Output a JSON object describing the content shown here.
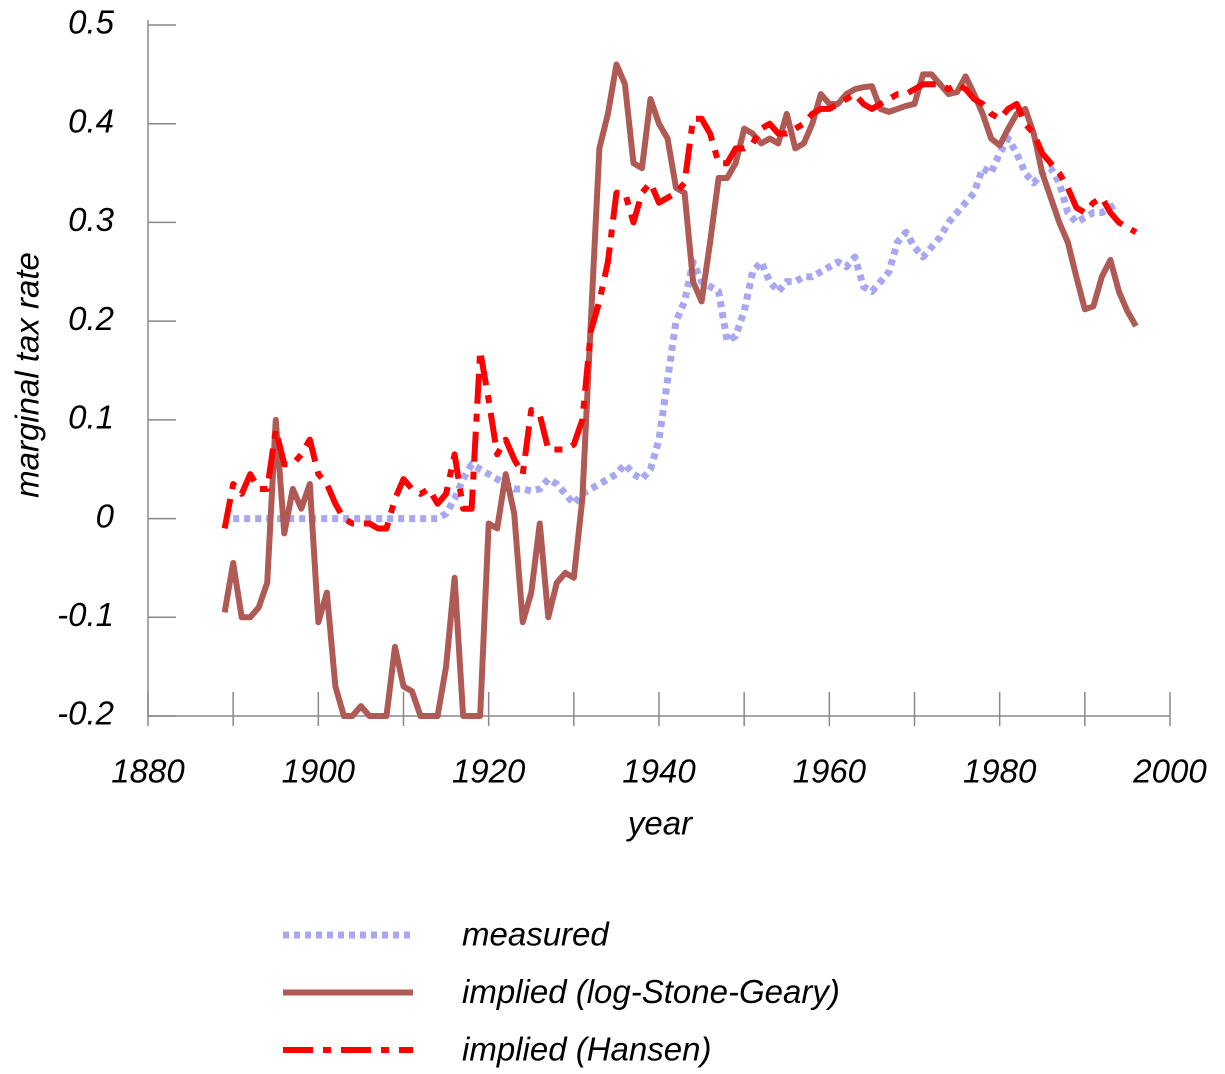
{
  "chart_data": {
    "type": "line",
    "xlabel": "year",
    "ylabel": "marginal tax rate",
    "xlim": [
      1880,
      2000
    ],
    "xticks": [
      1880,
      1900,
      1920,
      1940,
      1960,
      1980,
      2000
    ],
    "xminorticks": [
      1890,
      1910,
      1930,
      1950,
      1970,
      1990
    ],
    "ylim": [
      -0.2,
      0.5
    ],
    "yticks": [
      -0.2,
      -0.1,
      0,
      0.1,
      0.2,
      0.3,
      0.4,
      0.5
    ],
    "x": [
      1889,
      1890,
      1891,
      1892,
      1893,
      1894,
      1895,
      1896,
      1897,
      1898,
      1899,
      1900,
      1901,
      1902,
      1903,
      1904,
      1905,
      1906,
      1907,
      1908,
      1909,
      1910,
      1911,
      1912,
      1913,
      1914,
      1915,
      1916,
      1917,
      1918,
      1919,
      1920,
      1921,
      1922,
      1923,
      1924,
      1925,
      1926,
      1927,
      1928,
      1929,
      1930,
      1931,
      1932,
      1933,
      1934,
      1935,
      1936,
      1937,
      1938,
      1939,
      1940,
      1941,
      1942,
      1943,
      1944,
      1945,
      1946,
      1947,
      1948,
      1949,
      1950,
      1951,
      1952,
      1953,
      1954,
      1955,
      1956,
      1957,
      1958,
      1959,
      1960,
      1961,
      1962,
      1963,
      1964,
      1965,
      1966,
      1967,
      1968,
      1969,
      1970,
      1971,
      1972,
      1973,
      1974,
      1975,
      1976,
      1977,
      1978,
      1979,
      1980,
      1981,
      1982,
      1983,
      1984,
      1985,
      1986,
      1987,
      1988,
      1989,
      1990,
      1991,
      1992,
      1993,
      1994,
      1995,
      1996
    ],
    "series": [
      {
        "name": "measured",
        "color": "#a8a8f2",
        "style": "dotted",
        "values": [
          null,
          0,
          0,
          0,
          0,
          0,
          0,
          0,
          0,
          0,
          0,
          0,
          0,
          0,
          0,
          0,
          0,
          0,
          0,
          0,
          0,
          0,
          0,
          0,
          0,
          0,
          0.005,
          0.02,
          0.04,
          0.055,
          0.05,
          0.045,
          0.04,
          0.035,
          0.03,
          0.03,
          0.028,
          0.03,
          0.04,
          0.035,
          0.025,
          0.015,
          0.025,
          0.03,
          0.035,
          0.04,
          0.045,
          0.055,
          0.045,
          0.04,
          0.05,
          0.08,
          0.14,
          0.2,
          0.22,
          0.26,
          0.24,
          0.235,
          0.23,
          0.18,
          0.185,
          0.21,
          0.25,
          0.26,
          0.24,
          0.23,
          0.24,
          0.24,
          0.245,
          0.245,
          0.25,
          0.255,
          0.26,
          0.255,
          0.265,
          0.235,
          0.23,
          0.24,
          0.25,
          0.28,
          0.29,
          0.275,
          0.265,
          0.275,
          0.285,
          0.3,
          0.31,
          0.32,
          0.33,
          0.355,
          0.35,
          0.37,
          0.385,
          0.37,
          0.35,
          0.34,
          0.35,
          0.355,
          0.34,
          0.31,
          0.3,
          0.305,
          0.31,
          0.31,
          0.315,
          0.32,
          null,
          null
        ]
      },
      {
        "name": "implied (log-Stone-Geary)",
        "color": "#b05a56",
        "style": "solid",
        "values": [
          -0.095,
          -0.045,
          -0.1,
          -0.1,
          -0.09,
          -0.065,
          0.1,
          -0.015,
          0.03,
          0.01,
          0.035,
          -0.105,
          -0.075,
          -0.17,
          -0.2,
          -0.2,
          -0.19,
          -0.2,
          -0.2,
          -0.2,
          -0.13,
          -0.17,
          -0.175,
          -0.2,
          -0.2,
          -0.2,
          -0.15,
          -0.06,
          -0.2,
          -0.2,
          -0.2,
          -0.005,
          -0.01,
          0.045,
          0.005,
          -0.105,
          -0.075,
          -0.005,
          -0.1,
          -0.065,
          -0.055,
          -0.06,
          0.02,
          0.2,
          0.375,
          0.41,
          0.46,
          0.44,
          0.36,
          0.355,
          0.425,
          0.4,
          0.385,
          0.335,
          0.33,
          0.24,
          0.22,
          0.28,
          0.345,
          0.345,
          0.36,
          0.395,
          0.39,
          0.38,
          0.385,
          0.38,
          0.41,
          0.375,
          0.38,
          0.4,
          0.43,
          0.42,
          0.42,
          0.43,
          0.435,
          0.437,
          0.438,
          0.415,
          0.412,
          0.415,
          0.418,
          0.42,
          0.45,
          0.45,
          0.44,
          0.43,
          0.432,
          0.448,
          0.43,
          0.41,
          0.385,
          0.378,
          0.395,
          0.41,
          0.415,
          0.39,
          0.35,
          0.325,
          0.3,
          0.28,
          0.245,
          0.212,
          0.215,
          0.245,
          0.262,
          0.23,
          0.21,
          0.195
        ]
      },
      {
        "name": "implied (Hansen)",
        "color": "#ff0000",
        "style": "dashdot",
        "values": [
          -0.01,
          0.035,
          0.025,
          0.045,
          0.03,
          0.03,
          0.09,
          0.055,
          0.055,
          0.065,
          0.08,
          0.045,
          0.035,
          0.015,
          0,
          -0.005,
          -0.005,
          -0.005,
          -0.01,
          -0.01,
          0.02,
          0.04,
          0.03,
          0.025,
          0.03,
          0.015,
          0.025,
          0.065,
          0.01,
          0.01,
          0.17,
          0.12,
          0.065,
          0.08,
          0.06,
          0.045,
          0.11,
          0.105,
          0.07,
          0.07,
          0.07,
          0.075,
          0.1,
          0.19,
          0.22,
          0.26,
          0.33,
          0.33,
          0.3,
          0.33,
          0.34,
          0.32,
          0.325,
          0.33,
          0.34,
          0.405,
          0.405,
          0.39,
          0.36,
          0.36,
          0.375,
          0.375,
          0.38,
          0.395,
          0.4,
          0.39,
          0.39,
          0.395,
          0.4,
          0.41,
          0.415,
          0.415,
          0.42,
          0.425,
          0.43,
          0.42,
          0.415,
          0.42,
          0.425,
          0.43,
          0.43,
          0.435,
          0.44,
          0.44,
          0.44,
          0.435,
          0.44,
          0.435,
          0.425,
          0.42,
          0.41,
          0.405,
          0.415,
          0.42,
          0.4,
          0.39,
          0.37,
          0.36,
          0.35,
          0.335,
          0.315,
          0.31,
          0.32,
          0.325,
          0.31,
          0.3,
          0.295,
          0.29
        ]
      }
    ]
  }
}
